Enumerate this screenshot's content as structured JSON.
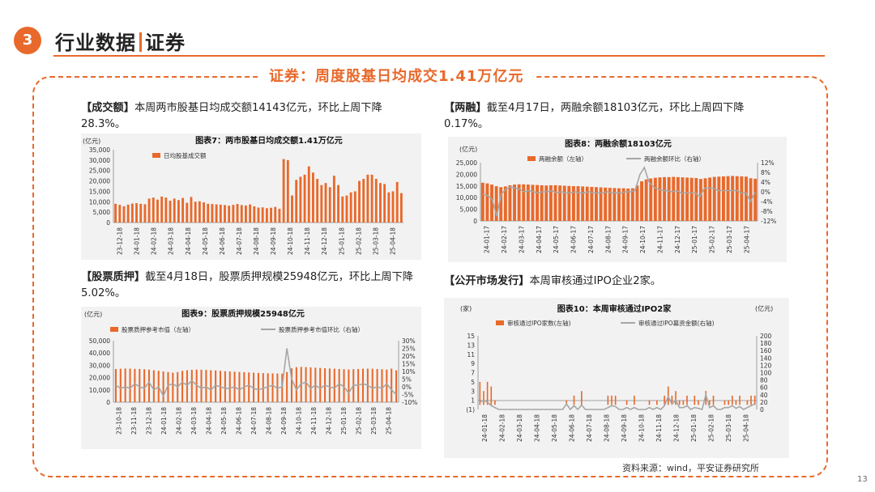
{
  "section": {
    "number": "3",
    "title": "行业数据",
    "subtitle": "证券"
  },
  "headline": "证券：周度股基日均成交1.41万亿元",
  "para1": {
    "bracket": "【成交额】",
    "text": "本周两市股基日均成交额14143亿元，环比上周下降28.3%。"
  },
  "para2": {
    "bracket": "【两融】",
    "text": "截至4月17日，两融余额18103亿元，环比上周四下降0.17%。"
  },
  "para3": {
    "bracket": "【股票质押】",
    "text": "截至4月18日，股票质押规模25948亿元，环比上周下降5.02%。"
  },
  "para4": {
    "bracket": "【公开市场发行】",
    "text": "本周审核通过IPO企业2家。"
  },
  "source": "资料来源：wind，平安证券研究所",
  "page_number": "13",
  "colors": {
    "accent": "#e8692b",
    "bar": "#e8692b",
    "line": "#a6a6a6"
  },
  "chart_data": [
    {
      "id": "chart7",
      "type": "bar",
      "title": "图表7：两市股基日均成交额1.41万亿元",
      "unit": "(亿元)",
      "legend": [
        "日均股基成交额"
      ],
      "ylim": [
        0,
        35000
      ],
      "yticks": [
        "0",
        "5,000",
        "10,000",
        "15,000",
        "20,000",
        "25,000",
        "30,000",
        "35,000"
      ],
      "xticks": [
        "23-12-18",
        "24-01-18",
        "24-02-18",
        "24-03-18",
        "24-04-18",
        "24-05-18",
        "24-06-18",
        "24-07-18",
        "24-08-18",
        "24-09-18",
        "24-10-18",
        "24-11-18",
        "24-12-18",
        "25-01-18",
        "25-02-18",
        "25-03-18",
        "25-04-18"
      ],
      "values": [
        9000,
        8500,
        7800,
        8600,
        9100,
        9300,
        9000,
        8800,
        11500,
        12000,
        11000,
        12500,
        12000,
        10500,
        11500,
        10800,
        11800,
        9500,
        12300,
        10000,
        10200,
        9700,
        9000,
        8900,
        8700,
        8600,
        8400,
        8100,
        8500,
        8900,
        8400,
        8200,
        8700,
        7800,
        7200,
        7300,
        6900,
        7100,
        7500,
        6600,
        30500,
        30000,
        13000,
        20500,
        22000,
        23000,
        27000,
        24000,
        21000,
        18000,
        19000,
        17000,
        22500,
        18000,
        12500,
        13000,
        14500,
        15000,
        20000,
        21000,
        23000,
        23000,
        21000,
        19000,
        18500,
        14500,
        15000,
        19500,
        14143
      ]
    },
    {
      "id": "chart8",
      "type": "bar+line",
      "title": "图表8：两融余额18103亿元",
      "unit": "(亿元)",
      "legend": [
        "两融余额（左轴）",
        "两融余额环比（右轴）"
      ],
      "ylim": [
        0,
        25000
      ],
      "yticks": [
        "0",
        "5,000",
        "10,000",
        "15,000",
        "20,000",
        "25,000"
      ],
      "y2ticks": [
        "-12%",
        "-8%",
        "-4%",
        "0%",
        "4%",
        "8%",
        "12%"
      ],
      "xticks": [
        "24-01-17",
        "24-02-17",
        "24-03-17",
        "24-04-17",
        "24-05-17",
        "24-06-17",
        "24-07-17",
        "24-08-17",
        "24-09-17",
        "24-10-17",
        "24-11-17",
        "24-12-17",
        "25-01-17",
        "25-02-17",
        "25-03-17",
        "25-04-17"
      ],
      "bars": [
        16400,
        16100,
        15600,
        14900,
        14500,
        14800,
        15300,
        15600,
        15700,
        15700,
        15600,
        15500,
        15400,
        15300,
        15200,
        15300,
        15300,
        15200,
        15100,
        15000,
        14900,
        14900,
        14800,
        14700,
        14600,
        14500,
        14400,
        14300,
        14200,
        14100,
        14000,
        14000,
        13900,
        14000,
        15200,
        17000,
        17800,
        18200,
        18500,
        18700,
        18800,
        18800,
        18900,
        18800,
        18700,
        18600,
        18500,
        18400,
        18000,
        18300,
        18600,
        18900,
        19000,
        19100,
        19200,
        19300,
        19200,
        19100,
        19000,
        18300,
        18103
      ],
      "line": [
        -1,
        -1.5,
        -3,
        -10,
        -1,
        1,
        2,
        1.5,
        1,
        0,
        0.5,
        0,
        -0.5,
        0,
        0,
        0.5,
        -0.5,
        0,
        -0.5,
        -0.5,
        0,
        -0.5,
        -0.5,
        0,
        -0.5,
        -0.5,
        -0.5,
        0,
        -0.5,
        -0.5,
        -0.5,
        0,
        0,
        0.5,
        7,
        10,
        4,
        2,
        1,
        0.5,
        0.5,
        0,
        0.5,
        -0.5,
        -0.5,
        -0.5,
        -0.5,
        -2,
        1.5,
        1.5,
        1.5,
        0.5,
        0.5,
        0.5,
        0.5,
        0.5,
        -0.5,
        -0.5,
        -4,
        -0.17
      ]
    },
    {
      "id": "chart9",
      "type": "bar+line",
      "title": "图表9：股票质押规模25948亿元",
      "unit": "(亿元)",
      "legend": [
        "股票质押参考市值（左轴）",
        "股票质押参考市值环比（右轴）"
      ],
      "ylim": [
        0,
        50000
      ],
      "yticks": [
        "0",
        "10,000",
        "20,000",
        "30,000",
        "40,000",
        "50,000"
      ],
      "y2ticks": [
        "-10%",
        "-5%",
        "0%",
        "5%",
        "10%",
        "15%",
        "20%",
        "25%",
        "30%"
      ],
      "xticks": [
        "23-10-18",
        "23-11-18",
        "23-12-18",
        "24-01-18",
        "24-02-18",
        "24-03-18",
        "24-04-18",
        "24-05-18",
        "24-06-18",
        "24-07-18",
        "24-08-18",
        "24-09-18",
        "24-10-18",
        "24-11-18",
        "24-12-18",
        "25-01-18",
        "25-02-18",
        "25-03-18",
        "25-04-18"
      ],
      "bars": [
        27000,
        27200,
        27400,
        27300,
        27100,
        27000,
        26800,
        26500,
        26000,
        25500,
        25000,
        24500,
        24000,
        24500,
        25500,
        26000,
        26300,
        26500,
        26400,
        26200,
        26000,
        25800,
        25500,
        25200,
        25000,
        24800,
        24600,
        24400,
        24200,
        24000,
        23800,
        23600,
        23500,
        23400,
        23300,
        23200,
        24500,
        27500,
        28500,
        28700,
        28500,
        28300,
        28000,
        27800,
        27600,
        27400,
        27200,
        27000,
        26800,
        26600,
        26800,
        27000,
        27200,
        27300,
        27200,
        27000,
        26800,
        26500,
        27318,
        25948
      ],
      "line": [
        1,
        -1,
        0,
        -1,
        2,
        0,
        -1,
        3,
        -2,
        0,
        -6,
        1,
        2,
        0,
        3,
        1,
        4,
        1,
        -1,
        0,
        -2,
        1,
        0,
        -1,
        -1,
        0,
        -2,
        0,
        1,
        -1,
        -2,
        -1,
        0,
        1,
        -1,
        0,
        25,
        5,
        -2,
        2,
        3,
        -1,
        1,
        -1,
        1,
        0,
        -1,
        2,
        0,
        -4,
        1,
        1,
        2,
        1,
        -1,
        0,
        -1,
        2,
        -2,
        -5
      ]
    },
    {
      "id": "chart10",
      "type": "bar+line",
      "title": "图表10：本周审核通过IPO2家",
      "unit_left": "(家)",
      "unit_right": "(亿元)",
      "legend": [
        "审核通过IPO家数(左轴)",
        "审核通过IPO募资金额(右轴)"
      ],
      "ylim": [
        -1,
        15
      ],
      "yticks": [
        "(1)",
        "1",
        "3",
        "5",
        "7",
        "9",
        "11",
        "13",
        "15"
      ],
      "y2ticks": [
        "0",
        "20",
        "40",
        "60",
        "80",
        "100",
        "120",
        "140",
        "160",
        "180",
        "200"
      ],
      "xticks": [
        "24-01-18",
        "24-02-18",
        "24-03-18",
        "24-04-18",
        "24-05-18",
        "24-06-18",
        "24-07-18",
        "24-08-18",
        "24-09-18",
        "24-10-18",
        "24-11-18",
        "24-12-18",
        "25-01-18",
        "25-02-18",
        "25-03-18",
        "25-04-18"
      ],
      "bars": [
        5,
        3,
        5,
        4,
        1,
        0,
        0,
        0,
        0,
        0,
        0,
        0,
        0,
        0,
        0,
        0,
        0,
        0,
        0,
        0,
        0,
        0,
        0,
        1,
        0,
        2,
        0,
        3,
        0,
        0,
        0,
        0,
        0,
        0,
        2,
        2,
        2,
        0,
        0,
        1,
        0,
        2,
        0,
        0,
        0,
        1,
        0,
        1,
        0,
        2,
        4,
        2,
        3,
        1,
        1,
        2,
        0,
        2,
        1,
        0,
        3,
        1,
        2,
        0,
        0,
        1,
        1,
        2,
        1,
        2,
        0,
        1,
        2,
        2
      ],
      "line": [
        20,
        25,
        20,
        10,
        5,
        0,
        0,
        0,
        0,
        0,
        0,
        0,
        0,
        0,
        0,
        0,
        0,
        0,
        0,
        0,
        0,
        0,
        0,
        15,
        0,
        10,
        0,
        12,
        0,
        0,
        0,
        0,
        0,
        0,
        5,
        10,
        8,
        0,
        0,
        5,
        0,
        5,
        0,
        0,
        0,
        5,
        0,
        5,
        0,
        10,
        35,
        15,
        25,
        5,
        5,
        10,
        0,
        5,
        3,
        0,
        40,
        5,
        10,
        0,
        0,
        5,
        5,
        10,
        3,
        8,
        0,
        5,
        10,
        15
      ]
    }
  ]
}
